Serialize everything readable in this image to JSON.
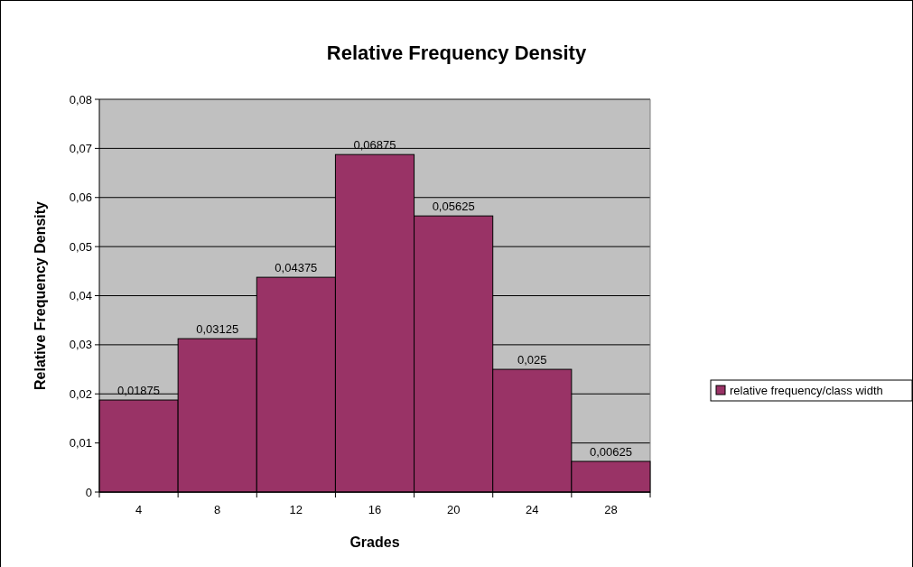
{
  "chart_data": {
    "type": "bar",
    "title": "Relative Frequency Density",
    "xlabel": "Grades",
    "ylabel": "Relative Frequency Density",
    "categories": [
      "4",
      "8",
      "12",
      "16",
      "20",
      "24",
      "28"
    ],
    "series": [
      {
        "name": "relative frequency/class width",
        "color": "#993366",
        "values": [
          0.01875,
          0.03125,
          0.04375,
          0.06875,
          0.05625,
          0.025,
          0.00625
        ],
        "value_labels": [
          "0,01875",
          "0,03125",
          "0,04375",
          "0,06875",
          "0,05625",
          "0,025",
          "0,00625"
        ]
      }
    ],
    "ylim": [
      0,
      0.08
    ],
    "yticks": [
      0,
      {
        "value": 0.01,
        "label": "0,01"
      },
      {
        "value": 0.02,
        "label": "0,02"
      },
      {
        "value": 0.03,
        "label": "0,03"
      },
      {
        "value": 0.04,
        "label": "0,04"
      },
      {
        "value": 0.05,
        "label": "0,05"
      },
      {
        "value": 0.06,
        "label": "0,06"
      },
      {
        "value": 0.07,
        "label": "0,07"
      },
      {
        "value": 0.08,
        "label": "0,08"
      }
    ],
    "grid": "y",
    "legend": "right"
  }
}
